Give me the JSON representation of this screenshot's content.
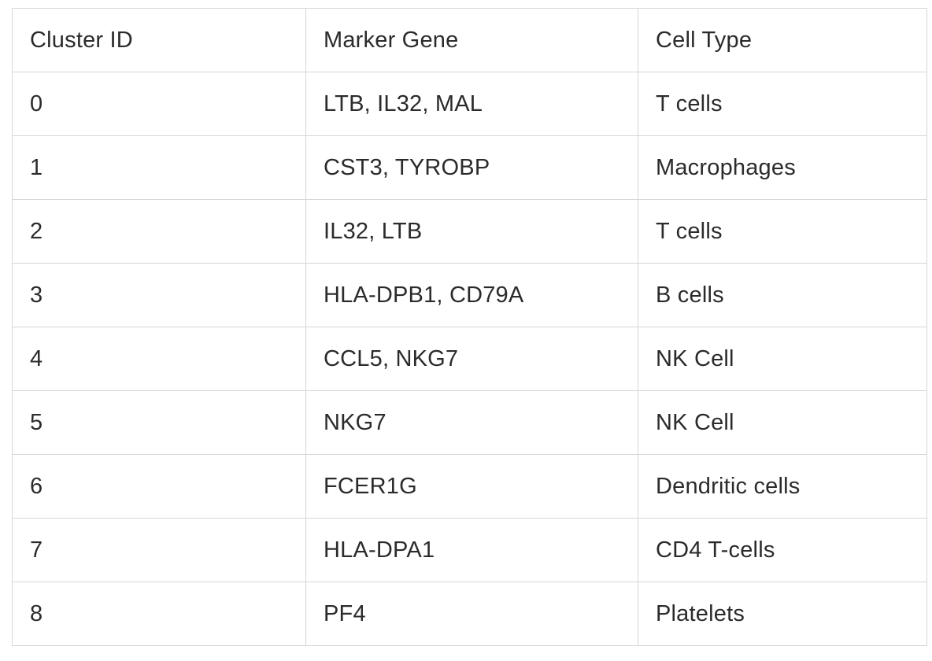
{
  "table": {
    "headers": [
      "Cluster ID",
      "Marker Gene",
      "Cell Type"
    ],
    "rows": [
      [
        "0",
        "LTB, IL32, MAL",
        "T cells"
      ],
      [
        "1",
        "CST3, TYROBP",
        "Macrophages"
      ],
      [
        "2",
        "IL32, LTB",
        "T cells"
      ],
      [
        "3",
        "HLA-DPB1, CD79A",
        "B cells"
      ],
      [
        "4",
        "CCL5, NKG7",
        "NK Cell"
      ],
      [
        "5",
        "NKG7",
        "NK Cell"
      ],
      [
        "6",
        "FCER1G",
        "Dendritic cells"
      ],
      [
        "7",
        "HLA-DPA1",
        "CD4 T-cells"
      ],
      [
        "8",
        "PF4",
        "Platelets"
      ]
    ]
  }
}
